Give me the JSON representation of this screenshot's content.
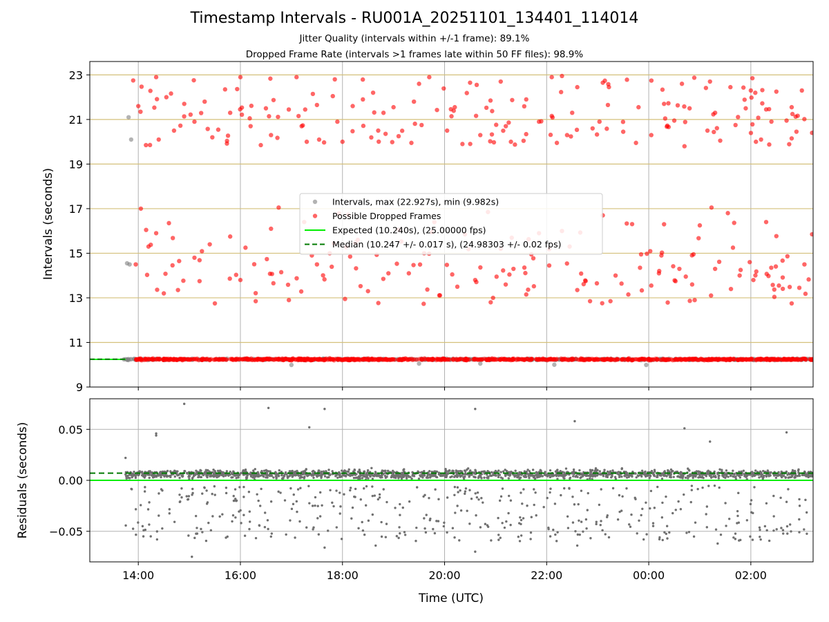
{
  "figure": {
    "title": "Timestamp Intervals - RU001A_20251101_134401_114014",
    "subtitle_1": "Jitter Quality (intervals within +/-1 frame): 89.1%",
    "subtitle_2": "Dropped Frame Rate (intervals >1 frames late within 50 FF files): 98.9%",
    "xlabel": "Time (UTC)"
  },
  "colors": {
    "intervals": "#808080",
    "dropped": "#ff0000",
    "expected": "#00ee00",
    "median": "#007a00",
    "hgrid": "#d4c07a",
    "vgrid": "#b0b0b0",
    "residuals": "#707070"
  },
  "chart_data": [
    {
      "type": "scatter",
      "title": "",
      "xlabel": "",
      "ylabel": "Intervals (seconds)",
      "xlim_hours": [
        13.05,
        27.22
      ],
      "ylim": [
        9,
        23.6
      ],
      "y_ticks": [
        9,
        11,
        13,
        15,
        17,
        19,
        21,
        23
      ],
      "x_ticks": [
        {
          "hour": 14,
          "label": "14:00"
        },
        {
          "hour": 16,
          "label": "16:00"
        },
        {
          "hour": 18,
          "label": "18:00"
        },
        {
          "hour": 20,
          "label": "20:00"
        },
        {
          "hour": 22,
          "label": "22:00"
        },
        {
          "hour": 24,
          "label": "00:00"
        },
        {
          "hour": 26,
          "label": "02:00"
        }
      ],
      "grid": {
        "horizontal": true,
        "vertical": true
      },
      "legend": {
        "placement": "center",
        "entries": [
          {
            "label": "Intervals, max (22.927s), min (9.982s)",
            "style": "marker-gray"
          },
          {
            "label": "Possible Dropped Frames",
            "style": "marker-red"
          },
          {
            "label": "Expected (10.240s), (25.00000 fps)",
            "style": "line-green"
          },
          {
            "label": "Median (10.247 +/- 0.017 s), (24.98303 +/- 0.02 fps)",
            "style": "line-dashed"
          }
        ]
      },
      "series": [
        {
          "name": "Intervals",
          "stats": {
            "max": 22.927,
            "min": 9.982,
            "start_hour": 13.75,
            "end_hour": 27.22
          },
          "points": [
            [
              13.81,
              21.1
            ],
            [
              13.86,
              20.1
            ],
            [
              13.78,
              14.55
            ],
            [
              13.83,
              14.5
            ],
            [
              13.72,
              10.24
            ],
            [
              17.0,
              9.99
            ],
            [
              23.95,
              9.99
            ],
            [
              22.15,
              10.0
            ],
            [
              20.7,
              10.05
            ],
            [
              19.5,
              10.05
            ]
          ]
        },
        {
          "name": "Possible Dropped Frames",
          "baseline": 10.24,
          "band_low": 19.8,
          "band_high": 22.9,
          "lower_band_low": 12.7,
          "lower_band_high": 17.1,
          "points": [
            [
              13.9,
              22.75
            ],
            [
              14.35,
              22.9
            ],
            [
              14.55,
              22.0
            ],
            [
              15.7,
              22.35
            ],
            [
              16.0,
              22.9
            ],
            [
              17.1,
              22.9
            ],
            [
              17.85,
              22.8
            ],
            [
              18.6,
              22.2
            ],
            [
              19.5,
              22.6
            ],
            [
              19.7,
              22.9
            ],
            [
              20.5,
              22.65
            ],
            [
              21.1,
              22.7
            ],
            [
              22.1,
              22.9
            ],
            [
              22.3,
              22.95
            ],
            [
              22.6,
              22.45
            ],
            [
              23.1,
              22.65
            ],
            [
              24.65,
              22.6
            ],
            [
              25.2,
              22.7
            ],
            [
              25.6,
              22.45
            ],
            [
              26.0,
              22.3
            ],
            [
              26.5,
              22.25
            ],
            [
              27.0,
              22.3
            ],
            [
              14.0,
              21.6
            ],
            [
              14.9,
              21.7
            ],
            [
              15.3,
              21.8
            ],
            [
              16.5,
              21.5
            ],
            [
              17.5,
              21.65
            ],
            [
              18.4,
              21.9
            ],
            [
              19.0,
              21.55
            ],
            [
              19.4,
              21.8
            ],
            [
              20.2,
              21.55
            ],
            [
              20.9,
              21.85
            ],
            [
              21.6,
              21.9
            ],
            [
              22.5,
              21.3
            ],
            [
              23.2,
              21.65
            ],
            [
              23.8,
              21.55
            ],
            [
              24.3,
              21.7
            ],
            [
              24.8,
              21.5
            ],
            [
              25.3,
              21.3
            ],
            [
              25.9,
              21.5
            ],
            [
              26.3,
              21.45
            ],
            [
              26.8,
              21.55
            ],
            [
              14.4,
              20.1
            ],
            [
              14.7,
              20.5
            ],
            [
              15.1,
              20.9
            ],
            [
              15.8,
              21.3
            ],
            [
              16.2,
              20.7
            ],
            [
              16.6,
              20.3
            ],
            [
              17.2,
              20.7
            ],
            [
              17.9,
              20.9
            ],
            [
              18.7,
              20.5
            ],
            [
              19.1,
              20.25
            ],
            [
              19.55,
              20.75
            ],
            [
              20.05,
              20.5
            ],
            [
              20.7,
              20.3
            ],
            [
              21.2,
              20.7
            ],
            [
              21.85,
              20.9
            ],
            [
              22.4,
              20.3
            ],
            [
              22.9,
              20.6
            ],
            [
              23.5,
              20.45
            ],
            [
              24.05,
              20.3
            ],
            [
              24.5,
              20.95
            ],
            [
              25.15,
              20.5
            ],
            [
              25.7,
              20.75
            ],
            [
              26.2,
              20.1
            ],
            [
              26.7,
              20.95
            ],
            [
              27.2,
              20.4
            ],
            [
              14.15,
              19.85
            ],
            [
              15.45,
              20.2
            ],
            [
              16.4,
              19.85
            ],
            [
              17.3,
              20.0
            ],
            [
              18.0,
              20.0
            ],
            [
              19.35,
              19.95
            ],
            [
              20.35,
              19.9
            ],
            [
              21.3,
              20.0
            ],
            [
              22.2,
              19.95
            ],
            [
              23.75,
              19.95
            ],
            [
              24.7,
              19.8
            ],
            [
              25.4,
              20.05
            ],
            [
              26.1,
              20.0
            ],
            [
              26.8,
              20.15
            ],
            [
              13.95,
              14.5
            ],
            [
              14.05,
              17.0
            ],
            [
              14.2,
              15.3
            ],
            [
              14.35,
              15.9
            ],
            [
              14.6,
              16.35
            ],
            [
              14.8,
              14.65
            ],
            [
              15.1,
              14.8
            ],
            [
              15.4,
              15.4
            ],
            [
              15.8,
              15.75
            ],
            [
              16.0,
              13.8
            ],
            [
              16.3,
              12.85
            ],
            [
              16.6,
              16.1
            ],
            [
              16.75,
              17.05
            ],
            [
              16.95,
              12.9
            ],
            [
              17.25,
              16.4
            ],
            [
              17.5,
              14.5
            ],
            [
              17.75,
              15.0
            ],
            [
              18.05,
              12.95
            ],
            [
              18.3,
              15.6
            ],
            [
              18.5,
              13.3
            ],
            [
              18.8,
              13.85
            ],
            [
              19.1,
              16.05
            ],
            [
              19.3,
              14.1
            ],
            [
              19.6,
              15.0
            ],
            [
              19.8,
              16.4
            ],
            [
              20.15,
              14.05
            ],
            [
              20.4,
              15.85
            ],
            [
              20.6,
              13.8
            ],
            [
              20.85,
              16.85
            ],
            [
              21.1,
              15.2
            ],
            [
              21.35,
              14.3
            ],
            [
              21.6,
              13.15
            ],
            [
              21.85,
              15.9
            ],
            [
              22.05,
              14.45
            ],
            [
              22.3,
              16.0
            ],
            [
              22.6,
              13.35
            ],
            [
              22.85,
              12.85
            ],
            [
              23.1,
              16.7
            ],
            [
              23.35,
              14.0
            ],
            [
              23.6,
              13.15
            ],
            [
              23.85,
              14.95
            ],
            [
              24.05,
              13.55
            ],
            [
              24.3,
              16.3
            ],
            [
              24.6,
              14.3
            ],
            [
              24.85,
              13.6
            ],
            [
              25.0,
              16.25
            ],
            [
              25.3,
              14.3
            ],
            [
              25.55,
              16.8
            ],
            [
              25.8,
              14.25
            ],
            [
              26.05,
              13.8
            ],
            [
              26.3,
              16.4
            ],
            [
              26.55,
              13.55
            ],
            [
              26.8,
              12.75
            ],
            [
              27.05,
              14.5
            ],
            [
              27.2,
              15.85
            ],
            [
              14.5,
              13.2
            ],
            [
              15.2,
              13.75
            ],
            [
              15.5,
              12.75
            ],
            [
              16.1,
              15.25
            ],
            [
              16.8,
              14.15
            ],
            [
              17.4,
              14.9
            ],
            [
              18.15,
              14.85
            ],
            [
              18.9,
              14.1
            ],
            [
              19.75,
              15.95
            ],
            [
              20.25,
              13.5
            ],
            [
              20.95,
              13.0
            ],
            [
              21.7,
              14.95
            ],
            [
              22.45,
              15.3
            ],
            [
              23.25,
              12.85
            ],
            [
              24.2,
              14.1
            ],
            [
              24.9,
              12.9
            ],
            [
              25.65,
              15.25
            ],
            [
              26.4,
              14.35
            ],
            [
              26.95,
              13.45
            ]
          ]
        }
      ]
    },
    {
      "type": "scatter",
      "title": "",
      "xlabel": "Time (UTC)",
      "ylabel": "Residuals (seconds)",
      "xlim_hours": [
        13.05,
        27.22
      ],
      "ylim": [
        -0.08,
        0.08
      ],
      "y_ticks": [
        {
          "value": 0.05,
          "label": "0.05"
        },
        {
          "value": 0.0,
          "label": "0.00"
        },
        {
          "value": -0.05,
          "label": "−0.05"
        }
      ],
      "x_ticks": [
        {
          "hour": 14,
          "label": "14:00"
        },
        {
          "hour": 16,
          "label": "16:00"
        },
        {
          "hour": 18,
          "label": "18:00"
        },
        {
          "hour": 20,
          "label": "20:00"
        },
        {
          "hour": 22,
          "label": "22:00"
        },
        {
          "hour": 24,
          "label": "00:00"
        },
        {
          "hour": 26,
          "label": "02:00"
        }
      ],
      "grid": {
        "horizontal": true,
        "vertical": true
      },
      "series": [
        {
          "name": "Expected residual",
          "value": 0.0
        },
        {
          "name": "Median residual",
          "value": 0.007
        },
        {
          "name": "Residuals",
          "dense_center": 0.006,
          "dense_spread": 0.004,
          "scatter_low": -0.06,
          "scatter_high": -0.005,
          "points": [
            [
              13.75,
              0.022
            ],
            [
              14.9,
              0.075
            ],
            [
              16.55,
              0.071
            ],
            [
              17.35,
              0.052
            ],
            [
              17.65,
              0.07
            ],
            [
              20.6,
              0.07
            ],
            [
              22.55,
              0.058
            ],
            [
              24.7,
              0.051
            ],
            [
              25.2,
              0.038
            ],
            [
              26.7,
              0.047
            ],
            [
              14.35,
              0.046
            ],
            [
              14.35,
              0.044
            ],
            [
              15.05,
              -0.075
            ],
            [
              17.65,
              -0.066
            ],
            [
              20.6,
              -0.07
            ],
            [
              22.6,
              -0.064
            ],
            [
              25.35,
              -0.062
            ],
            [
              18.65,
              -0.064
            ],
            [
              14.1,
              -0.055
            ],
            [
              23.9,
              -0.058
            ]
          ]
        }
      ]
    }
  ]
}
